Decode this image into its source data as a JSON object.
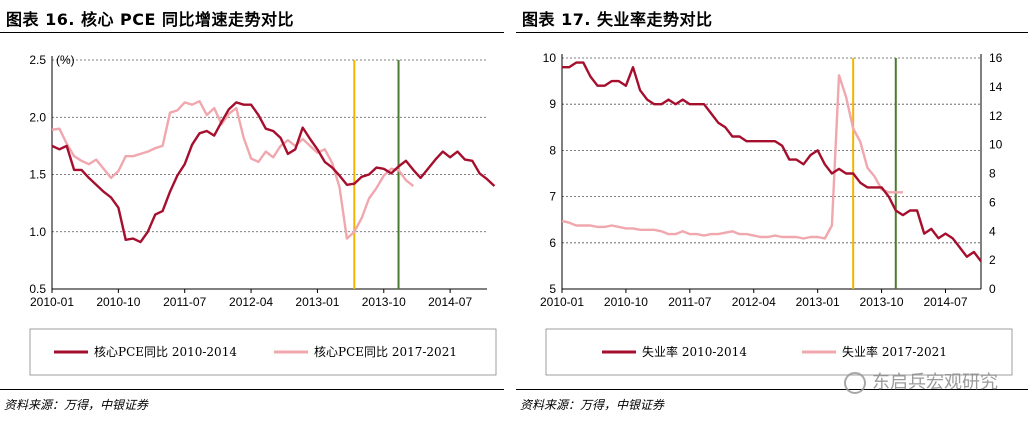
{
  "left": {
    "title": "图表 16. 核心 PCE 同比增速走势对比",
    "source": "资料来源：万得，中银证券",
    "chart_data": {
      "type": "line",
      "title": "图表 16. 核心 PCE 同比增速走势对比",
      "unit_label": "(%)",
      "x_tick_labels": [
        "2010-01",
        "2010-10",
        "2011-07",
        "2012-04",
        "2013-01",
        "2013-10",
        "2014-07"
      ],
      "x_range": [
        0,
        59
      ],
      "y_range": [
        0.5,
        2.5
      ],
      "y_ticks": [
        0.5,
        1.0,
        1.5,
        2.0,
        2.5
      ],
      "grid": "horizontal-dashed",
      "vertical_markers": [
        {
          "month_index": 41,
          "color": "#f5b400"
        },
        {
          "month_index": 47,
          "color": "#4a7a2e"
        }
      ],
      "series": [
        {
          "name": "核心PCE同比 2010-2014",
          "color": "#a50f2d",
          "values": [
            1.75,
            1.72,
            1.75,
            1.54,
            1.54,
            1.47,
            1.41,
            1.35,
            1.3,
            1.21,
            0.93,
            0.94,
            0.91,
            1.0,
            1.15,
            1.18,
            1.35,
            1.49,
            1.59,
            1.76,
            1.86,
            1.88,
            1.84,
            1.96,
            2.07,
            2.13,
            2.11,
            2.11,
            2.02,
            1.9,
            1.88,
            1.82,
            1.68,
            1.72,
            1.91,
            1.81,
            1.72,
            1.61,
            1.56,
            1.49,
            1.41,
            1.42,
            1.48,
            1.5,
            1.56,
            1.55,
            1.51,
            1.57,
            1.62,
            1.54,
            1.47,
            1.55,
            1.63,
            1.7,
            1.65,
            1.7,
            1.63,
            1.62,
            1.51,
            1.46,
            1.4
          ]
        },
        {
          "name": "核心PCE同比 2017-2021",
          "color": "#f0a7ae",
          "values": [
            1.89,
            1.9,
            1.77,
            1.66,
            1.62,
            1.59,
            1.63,
            1.55,
            1.47,
            1.53,
            1.66,
            1.66,
            1.68,
            1.7,
            1.73,
            1.75,
            2.04,
            2.06,
            2.13,
            2.11,
            2.14,
            2.02,
            2.08,
            1.94,
            2.03,
            2.08,
            1.82,
            1.64,
            1.61,
            1.7,
            1.65,
            1.75,
            1.8,
            1.75,
            1.81,
            1.75,
            1.69,
            1.72,
            1.6,
            1.39,
            0.94,
            1.0,
            1.12,
            1.29,
            1.38,
            1.49,
            1.55,
            1.54,
            1.45,
            1.4
          ]
        }
      ]
    }
  },
  "right": {
    "title": "图表 17. 失业率走势对比",
    "source": "资料来源：万得，中银证券",
    "watermark": "东启兵宏观研究",
    "chart_data": {
      "type": "line",
      "title": "图表 17. 失业率走势对比",
      "x_tick_labels": [
        "2010-01",
        "2010-10",
        "2011-07",
        "2012-04",
        "2013-01",
        "2013-10",
        "2014-07"
      ],
      "x_range": [
        0,
        59
      ],
      "y_left_range": [
        5,
        10
      ],
      "y_left_ticks": [
        5,
        6,
        7,
        8,
        9,
        10
      ],
      "y_right_range": [
        0,
        16
      ],
      "y_right_ticks": [
        0,
        2,
        4,
        6,
        8,
        10,
        12,
        14,
        16
      ],
      "grid": "horizontal-dashed",
      "vertical_markers": [
        {
          "month_index": 41,
          "color": "#f5b400"
        },
        {
          "month_index": 47,
          "color": "#4a7a2e"
        }
      ],
      "series": [
        {
          "name": "失业率 2010-2014",
          "axis": "left",
          "color": "#a50f2d",
          "values": [
            9.8,
            9.8,
            9.9,
            9.9,
            9.6,
            9.4,
            9.4,
            9.5,
            9.5,
            9.4,
            9.8,
            9.3,
            9.1,
            9.0,
            9.0,
            9.1,
            9.0,
            9.1,
            9.0,
            9.0,
            9.0,
            8.8,
            8.6,
            8.5,
            8.3,
            8.3,
            8.2,
            8.2,
            8.2,
            8.2,
            8.2,
            8.1,
            7.8,
            7.8,
            7.7,
            7.9,
            8.0,
            7.7,
            7.5,
            7.6,
            7.5,
            7.5,
            7.3,
            7.2,
            7.2,
            7.2,
            7.0,
            6.7,
            6.6,
            6.7,
            6.7,
            6.2,
            6.3,
            6.1,
            6.2,
            6.1,
            5.9,
            5.7,
            5.8,
            5.6
          ]
        },
        {
          "name": "失业率 2017-2021",
          "axis": "right",
          "color": "#f0a7ae",
          "values": [
            4.7,
            4.6,
            4.4,
            4.4,
            4.4,
            4.3,
            4.3,
            4.4,
            4.3,
            4.2,
            4.2,
            4.1,
            4.1,
            4.1,
            4.0,
            3.8,
            3.8,
            4.0,
            3.8,
            3.8,
            3.7,
            3.8,
            3.8,
            3.9,
            4.0,
            3.8,
            3.8,
            3.7,
            3.6,
            3.6,
            3.7,
            3.6,
            3.6,
            3.6,
            3.5,
            3.6,
            3.6,
            3.5,
            4.4,
            14.8,
            13.3,
            11.1,
            10.2,
            8.4,
            7.8,
            6.9,
            6.7,
            6.7,
            6.7
          ]
        }
      ]
    }
  }
}
